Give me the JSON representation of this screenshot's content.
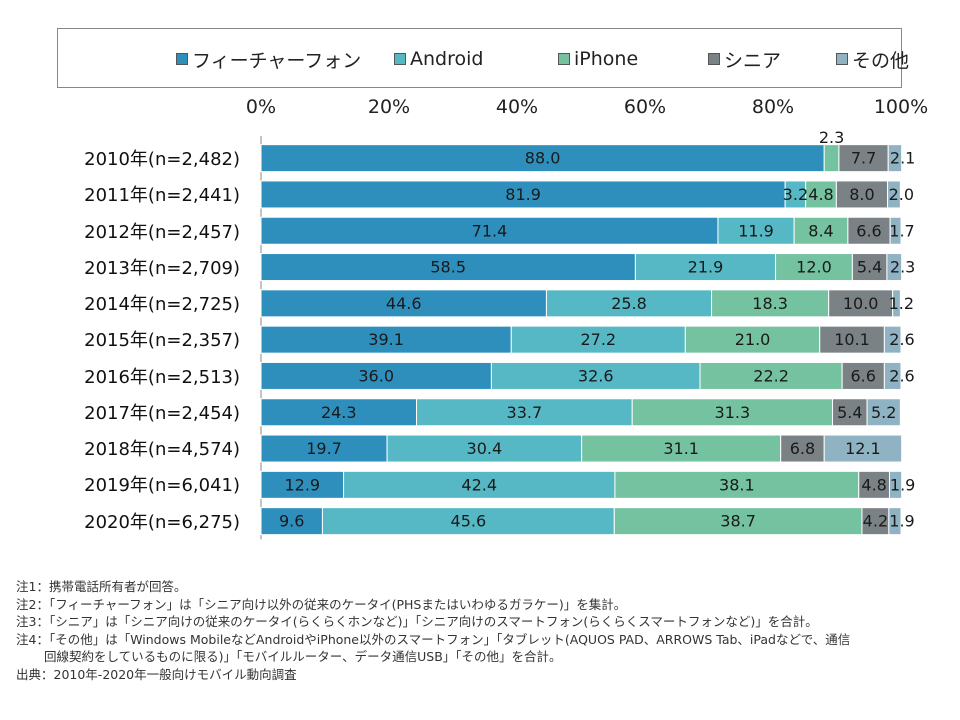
{
  "legend": {
    "items": [
      {
        "label": "フィーチャーフォン",
        "color": "#2e8fbd"
      },
      {
        "label": "Android",
        "color": "#55b8c4"
      },
      {
        "label": "iPhone",
        "color": "#74c2a0"
      },
      {
        "label": "シニア",
        "color": "#7a8285"
      },
      {
        "label": "その他",
        "color": "#8fb3c3"
      }
    ]
  },
  "chart_data": {
    "type": "bar",
    "orientation": "horizontal",
    "stacked": true,
    "percent": true,
    "xlim": [
      0,
      100
    ],
    "xticks": [
      "0%",
      "20%",
      "40%",
      "60%",
      "80%",
      "100%"
    ],
    "legend_position": "top",
    "grid": false,
    "categories": [
      "2010年(n=2,482)",
      "2011年(n=2,441)",
      "2012年(n=2,457)",
      "2013年(n=2,709)",
      "2014年(n=2,725)",
      "2015年(n=2,357)",
      "2016年(n=2,513)",
      "2017年(n=2,454)",
      "2018年(n=4,574)",
      "2019年(n=6,041)",
      "2020年(n=6,275)"
    ],
    "series": [
      {
        "name": "フィーチャーフォン",
        "values": [
          88.0,
          81.9,
          71.4,
          58.5,
          44.6,
          39.1,
          36.0,
          24.3,
          19.7,
          12.9,
          9.6
        ]
      },
      {
        "name": "Android",
        "values": [
          0,
          3.2,
          11.9,
          21.9,
          25.8,
          27.2,
          32.6,
          33.7,
          30.4,
          42.4,
          45.6
        ]
      },
      {
        "name": "iPhone",
        "values": [
          2.3,
          4.8,
          8.4,
          12.0,
          18.3,
          21.0,
          22.2,
          31.3,
          31.1,
          38.1,
          38.7
        ]
      },
      {
        "name": "シニア",
        "values": [
          7.7,
          8.0,
          6.6,
          5.4,
          10.0,
          10.1,
          6.6,
          5.4,
          6.8,
          4.8,
          4.2
        ]
      },
      {
        "name": "その他",
        "values": [
          2.1,
          2.0,
          1.7,
          2.3,
          1.2,
          2.6,
          2.6,
          5.2,
          12.1,
          1.9,
          1.9
        ]
      }
    ]
  },
  "notes": [
    "注1：携帯電話所有者が回答。",
    "注2：「フィーチャーフォン」は「シニア向け以外の従来のケータイ(PHSまたはいわゆるガラケー)」を集計。",
    "注3：「シニア」は「シニア向けの従来のケータイ(らくらくホンなど)」「シニア向けのスマートフォン(らくらくスマートフォンなど)」を合計。",
    "注4：「その他」は「Windows MobileなどAndroidやiPhone以外のスマートフォン」「タブレット(AQUOS PAD、ARROWS Tab、iPadなどで、通信",
    "回線契約をしているものに限る)」「モバイルルーター、データ通信USB」「その他」を合計。",
    "出典：2010年-2020年一般向けモバイル動向調査"
  ]
}
